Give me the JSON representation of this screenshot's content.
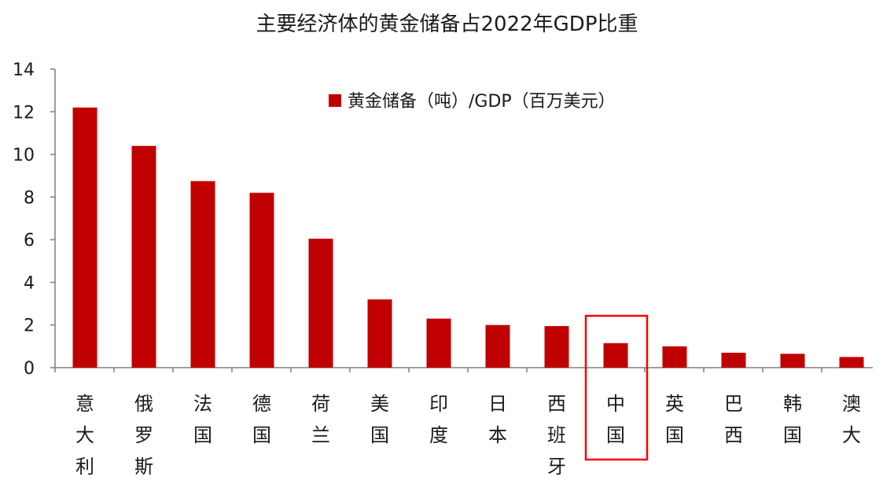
{
  "chart_data": {
    "type": "bar",
    "title": "主要经济体的黄金储备占2022年GDP比重",
    "xlabel": "",
    "ylabel": "",
    "ylim": [
      0,
      14
    ],
    "yticks": [
      0,
      2,
      4,
      6,
      8,
      10,
      12,
      14
    ],
    "grid": false,
    "legend_position": "top-center",
    "categories": [
      "意大利",
      "俄罗斯",
      "法国",
      "德国",
      "荷兰",
      "美国",
      "印度",
      "日本",
      "西班牙",
      "中国",
      "英国",
      "巴西",
      "韩国",
      "澳大"
    ],
    "series": [
      {
        "name": "黄金储备（吨）/GDP（百万美元）",
        "values": [
          12.2,
          10.4,
          8.75,
          8.2,
          6.05,
          3.2,
          2.3,
          2.0,
          1.95,
          1.15,
          1.0,
          0.7,
          0.65,
          0.5
        ],
        "color": "#c00000"
      }
    ],
    "highlight": {
      "category": "中国",
      "color": "#ff0000"
    }
  }
}
